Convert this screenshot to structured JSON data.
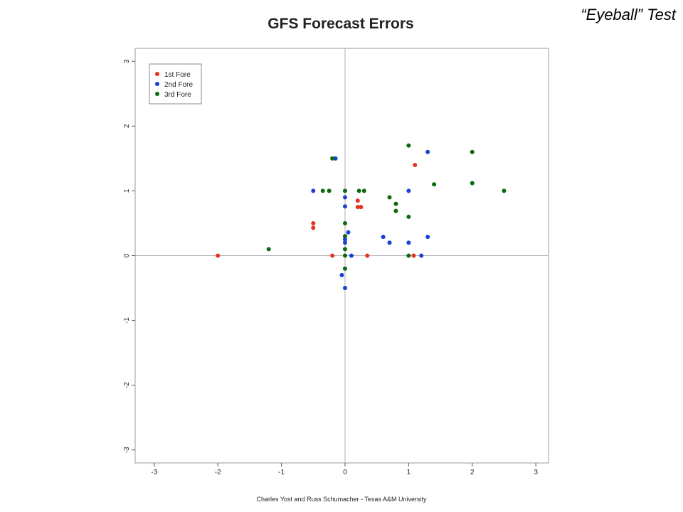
{
  "corner_label": "“Eyeball” Test",
  "credit": "Charles Yost and Russ Schumacher - Texas A&M University",
  "chart_data": {
    "type": "scatter",
    "title": "GFS Forecast Errors",
    "xlabel": "",
    "ylabel": "",
    "xlim": [
      -3.3,
      3.2
    ],
    "ylim": [
      -3.2,
      3.2
    ],
    "x_ticks": [
      "-3",
      "-2",
      "-1",
      "0",
      "1",
      "2",
      "3"
    ],
    "y_ticks": [
      "-3",
      "-2",
      "-1",
      "0",
      "1",
      "2",
      "3"
    ],
    "grid": false,
    "reference_lines": [
      0,
      0
    ],
    "legend_position": "top-left",
    "series": [
      {
        "name": "1st Fore",
        "color": "#e8321e",
        "points": [
          [
            -2.0,
            0.0
          ],
          [
            -0.5,
            0.5
          ],
          [
            -0.5,
            0.43
          ],
          [
            -0.2,
            0.0
          ],
          [
            0.2,
            0.85
          ],
          [
            0.2,
            0.75
          ],
          [
            0.25,
            0.75
          ],
          [
            0.35,
            0.0
          ],
          [
            1.1,
            1.4
          ],
          [
            1.08,
            0.0
          ]
        ]
      },
      {
        "name": "2nd Fore",
        "color": "#1a3fd6",
        "points": [
          [
            -0.5,
            1.0
          ],
          [
            -0.15,
            1.5
          ],
          [
            0.0,
            0.9
          ],
          [
            0.0,
            0.76
          ],
          [
            0.0,
            0.25
          ],
          [
            0.05,
            0.36
          ],
          [
            0.0,
            0.2
          ],
          [
            0.1,
            0.0
          ],
          [
            -0.05,
            -0.3
          ],
          [
            0.0,
            -0.5
          ],
          [
            0.6,
            0.29
          ],
          [
            0.7,
            0.2
          ],
          [
            1.0,
            1.0
          ],
          [
            1.0,
            0.2
          ],
          [
            1.2,
            0.0
          ],
          [
            1.3,
            0.29
          ],
          [
            1.3,
            1.6
          ]
        ]
      },
      {
        "name": "3rd Fore",
        "color": "#0c6b0c",
        "points": [
          [
            -1.2,
            0.1
          ],
          [
            -0.35,
            1.0
          ],
          [
            -0.25,
            1.0
          ],
          [
            -0.2,
            1.5
          ],
          [
            0.0,
            1.0
          ],
          [
            0.0,
            0.5
          ],
          [
            0.0,
            0.3
          ],
          [
            0.0,
            0.1
          ],
          [
            0.0,
            0.0
          ],
          [
            0.0,
            -0.2
          ],
          [
            0.22,
            1.0
          ],
          [
            0.3,
            1.0
          ],
          [
            0.7,
            0.9
          ],
          [
            0.8,
            0.8
          ],
          [
            0.8,
            0.69
          ],
          [
            1.0,
            1.7
          ],
          [
            1.0,
            0.6
          ],
          [
            1.0,
            0.0
          ],
          [
            1.4,
            1.1
          ],
          [
            2.0,
            1.6
          ],
          [
            2.0,
            1.12
          ],
          [
            2.5,
            1.0
          ]
        ]
      }
    ]
  }
}
